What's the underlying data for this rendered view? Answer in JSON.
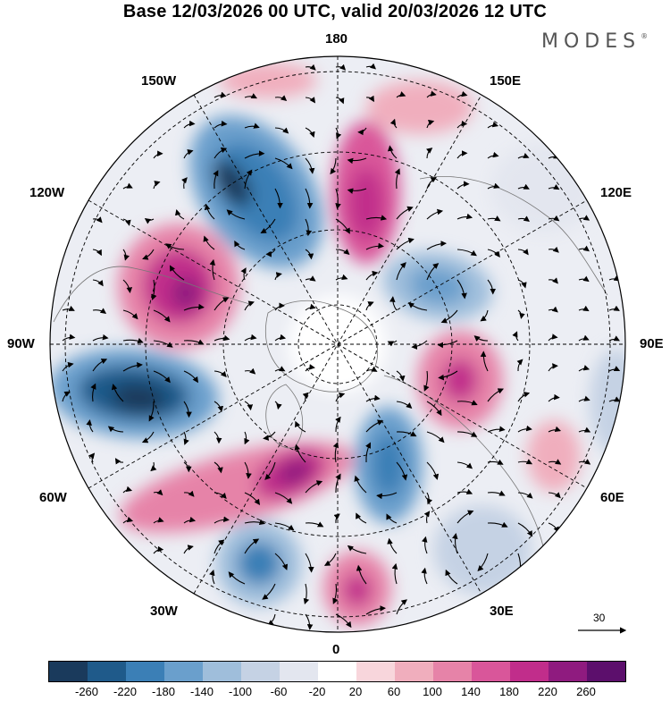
{
  "title": "Base 12/03/2026 00 UTC, valid 20/03/2026 12 UTC",
  "brand": "MODES",
  "brand_mark": "®",
  "longitude_labels": {
    "top": "180",
    "bottom": "0",
    "left": "90W",
    "right": "90E",
    "upper_left_1": "150W",
    "upper_left_2": "120W",
    "lower_left_1": "60W",
    "lower_left_2": "30W",
    "upper_right_1": "150E",
    "upper_right_2": "120E",
    "lower_right_1": "60E",
    "lower_right_2": "30E"
  },
  "reference_vector": "30",
  "colorbar": {
    "colors": [
      "#1a3a5c",
      "#1f5a8a",
      "#3b7fb6",
      "#6a9fcc",
      "#9fbedb",
      "#c5d2e4",
      "#e3e6ef",
      "#ffffff",
      "#f8d6dc",
      "#f0aebd",
      "#e683a8",
      "#d9569a",
      "#c12d8b",
      "#8f1b7f",
      "#5c0f6c"
    ],
    "ticks": [
      "-260",
      "-220",
      "-180",
      "-140",
      "-100",
      "-60",
      "-20",
      "20",
      "60",
      "100",
      "140",
      "180",
      "220",
      "260"
    ]
  },
  "map": {
    "projection": "north polar stereographic",
    "field": "geopotential height anomaly with wind vectors"
  }
}
